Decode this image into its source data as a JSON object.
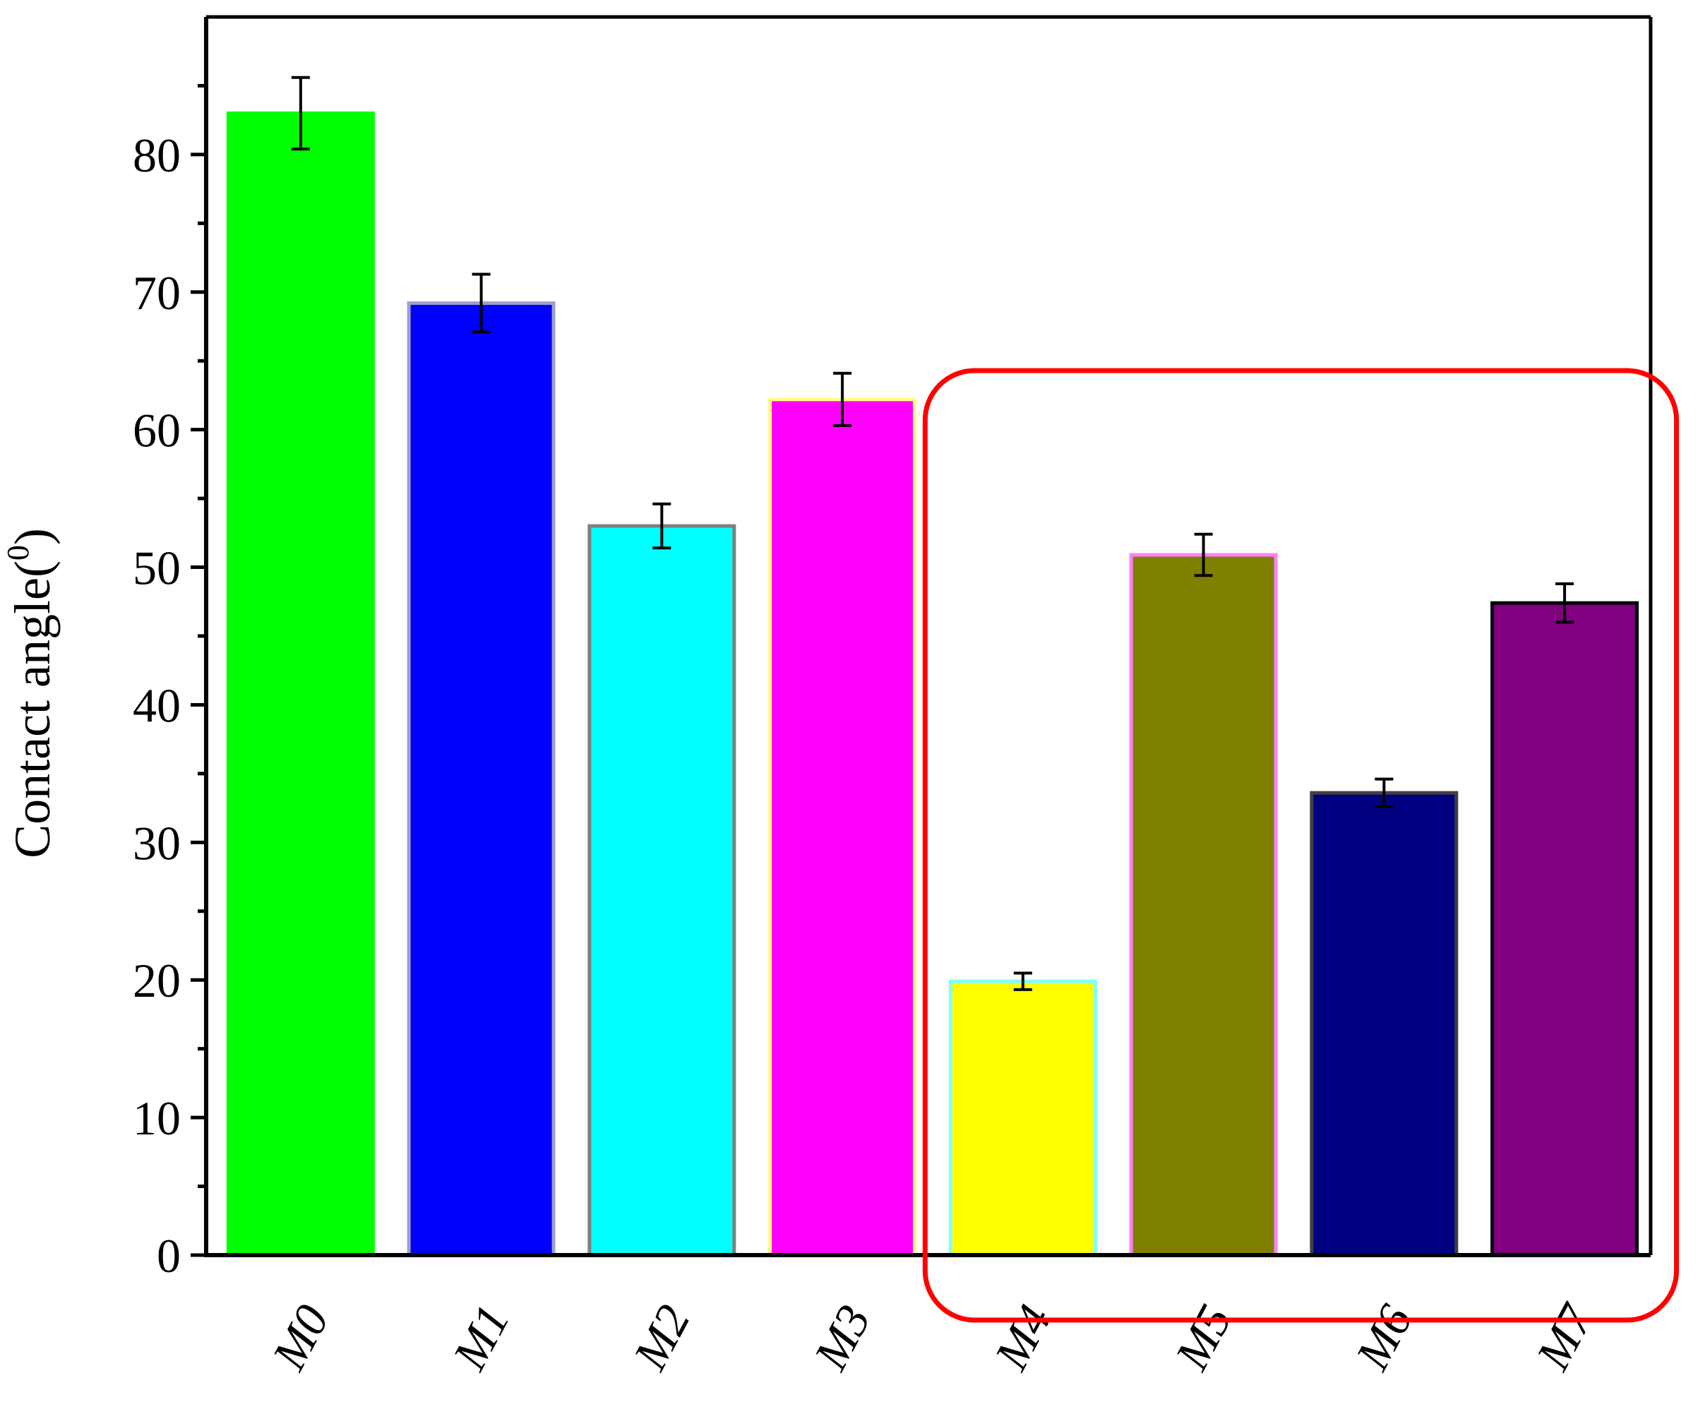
{
  "chart_data": {
    "type": "bar",
    "title": "",
    "xlabel": "",
    "ylabel": {
      "prefix": "Contact angle(",
      "superscript": "0",
      "suffix": ")"
    },
    "categories": [
      "M0",
      "M1",
      "M2",
      "M3",
      "M4",
      "M5",
      "M6",
      "M7"
    ],
    "values": [
      83.0,
      69.2,
      53.0,
      62.2,
      19.9,
      50.9,
      33.6,
      47.4
    ],
    "errors": [
      2.6,
      2.1,
      1.6,
      1.9,
      0.6,
      1.5,
      1.0,
      1.4
    ],
    "fill_colors": [
      "#00ff00",
      "#0000ff",
      "#00ffff",
      "#ff00ff",
      "#ffff00",
      "#808000",
      "#000080",
      "#800080"
    ],
    "stroke_colors": [
      "#00ff00",
      "#a0a0c8",
      "#808080",
      "#ffff80",
      "#80ffff",
      "#ff80ff",
      "#404040",
      "#000000"
    ],
    "ylim": [
      0,
      90
    ],
    "yticks": [
      0,
      10,
      20,
      30,
      40,
      50,
      60,
      70,
      80
    ],
    "grid": false,
    "legend": "none",
    "highlight": {
      "categories": [
        "M4",
        "M5",
        "M6",
        "M7"
      ],
      "color": "#ff0000"
    }
  }
}
